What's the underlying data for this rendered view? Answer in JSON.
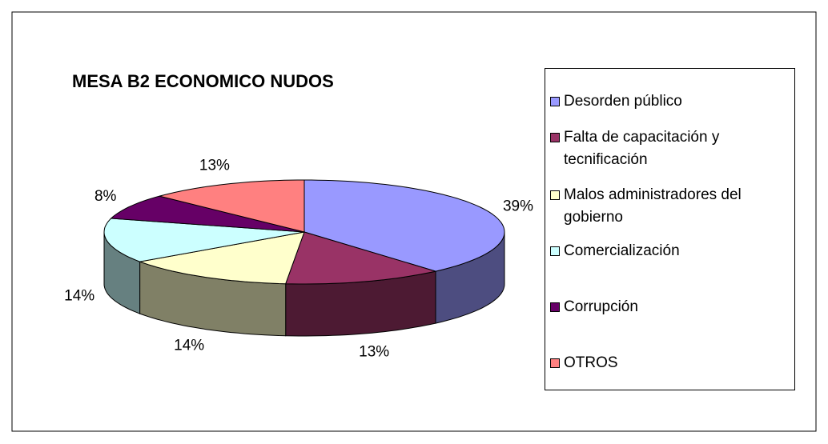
{
  "chart_data": {
    "type": "pie",
    "title": "MESA B2 ECONOMICO NUDOS",
    "categories": [
      "Desorden público",
      "Falta de capacitación y tecnificación",
      "Malos administradores del gobierno",
      "Comercialización",
      "Corrupción",
      "OTROS"
    ],
    "values": [
      39,
      13,
      14,
      14,
      8,
      13
    ],
    "value_labels": [
      "39%",
      "13%",
      "14%",
      "14%",
      "8%",
      "13%"
    ],
    "colors": [
      "#9999ff",
      "#993366",
      "#ffffcc",
      "#ccffff",
      "#660066",
      "#ff8080"
    ],
    "legend": "right",
    "three_d": true
  }
}
